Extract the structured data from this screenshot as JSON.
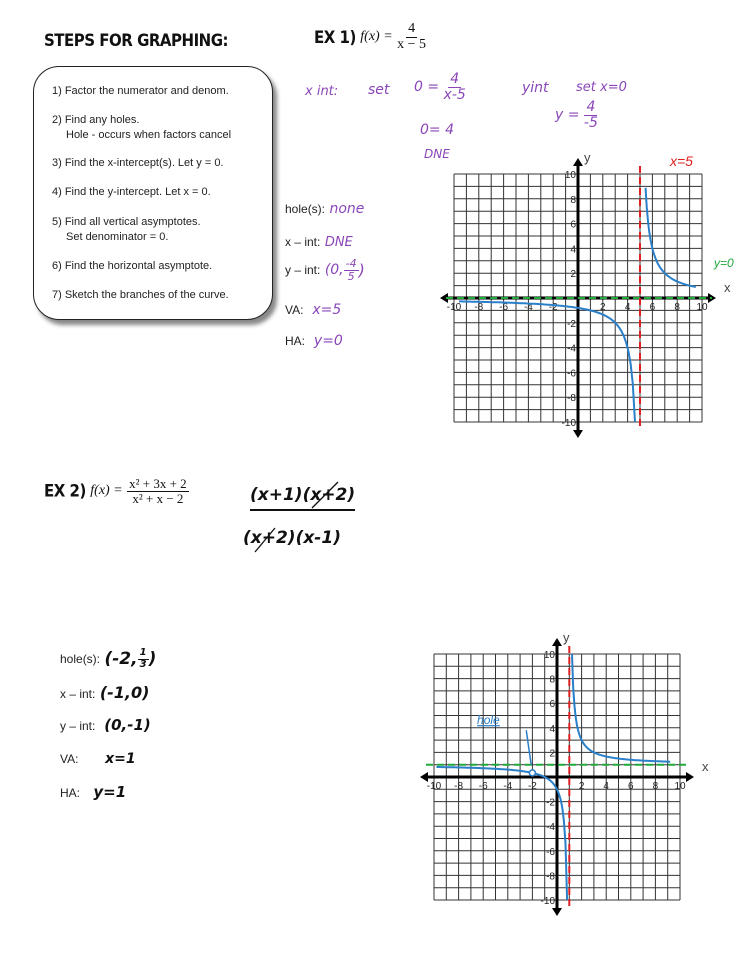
{
  "steps": {
    "title": "STEPS FOR GRAPHING:",
    "items": [
      "1) Factor the numerator and denom.",
      "2) Find any holes.",
      "Hole - occurs when factors cancel",
      "3)  Find the x-intercept(s). Let y = 0.",
      "4)  Find the y-intercept. Let x = 0.",
      "5) Find all vertical asymptotes.",
      "Set denominator = 0.",
      "6)  Find the horizontal asymptote.",
      "7)  Sketch the branches of the curve."
    ]
  },
  "ex1": {
    "label": "EX 1)",
    "fx": "f(x) =",
    "numerator": "4",
    "denominator": "x − 5",
    "work": {
      "xint_label": "x int:",
      "xint_set": "set",
      "xint_eq_lhs": "0 =",
      "xint_num": "4",
      "xint_den": "x-5",
      "xint_step": "0= 4",
      "xint_result": "DNE",
      "yint_label": "yint",
      "yint_set": "set  x=0",
      "yint_eq_lhs": "y =",
      "yint_num": "4",
      "yint_den": "-5"
    },
    "answers": {
      "hole_label": "hole(s):",
      "hole": "none",
      "xint_label": "x – int:",
      "xint": "DNE",
      "yint_label": "y – int:",
      "yint_open": "(0,",
      "yint_num": "-4",
      "yint_den": "5",
      "yint_close": ")",
      "va_label": "VA:",
      "va": "x=5",
      "ha_label": "HA:",
      "ha": "y=0"
    },
    "graph": {
      "xlim": [
        -10,
        10
      ],
      "ylim": [
        -10,
        10
      ],
      "x_ticks": [
        "-10",
        "-8",
        "-6",
        "-4",
        "-2",
        "2",
        "4",
        "6",
        "8",
        "10"
      ],
      "y_ticks": [
        "10",
        "8",
        "6",
        "4",
        "2",
        "-2",
        "-4",
        "-6",
        "-8",
        "-10"
      ],
      "x_axis_label": "x",
      "y_axis_label": "y",
      "vertical_asymptote": 5,
      "horizontal_asymptote": 0,
      "va_annotation": "x=5",
      "ha_annotation": "y=0",
      "hole": null,
      "colors": {
        "curve": "#2a7fc9",
        "va": "#e02020",
        "ha": "#1faa3a"
      }
    }
  },
  "ex2": {
    "label": "EX 2)",
    "fx": "f(x) =",
    "numerator": "x² + 3x + 2",
    "denominator": "x² + x − 2",
    "factored_numerator": "(x+1)(x+2)",
    "factored_denominator": "(x+2)(x-1)",
    "answers": {
      "hole_label": "hole(s):",
      "hole_open": "(-2,",
      "hole_num": "1",
      "hole_den": "3",
      "hole_close": ")",
      "xint_label": "x – int:",
      "xint": "(-1,0)",
      "yint_label": "y – int:",
      "yint": "(0,-1)",
      "va_label": "VA:",
      "va": "x=1",
      "ha_label": "HA:",
      "ha": "y=1"
    },
    "graph": {
      "xlim": [
        -10,
        10
      ],
      "ylim": [
        -10,
        10
      ],
      "x_ticks": [
        "-10",
        "-8",
        "-6",
        "-4",
        "-2",
        "2",
        "4",
        "6",
        "8",
        "10"
      ],
      "y_ticks": [
        "10",
        "8",
        "6",
        "4",
        "2",
        "-2",
        "-4",
        "-6",
        "-8",
        "-10"
      ],
      "x_axis_label": "x",
      "y_axis_label": "y",
      "vertical_asymptote": 1,
      "horizontal_asymptote": 1,
      "hole": [
        -2,
        0.333
      ],
      "hole_annotation": "hole",
      "colors": {
        "curve": "#2a7fc9",
        "va": "#e02020",
        "ha": "#1faa3a"
      }
    }
  }
}
